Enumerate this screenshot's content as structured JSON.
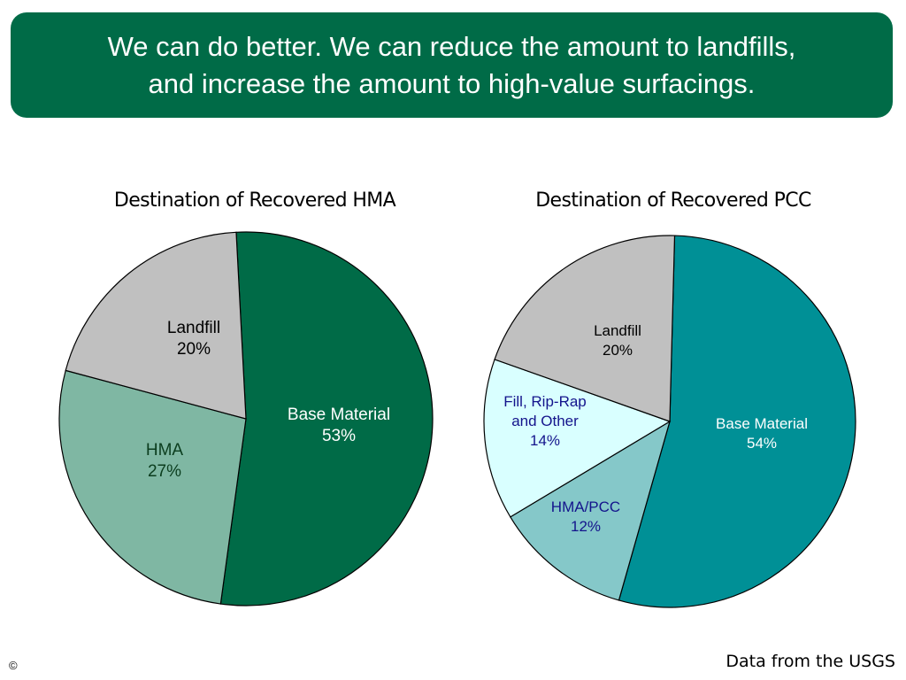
{
  "banner": {
    "text": "We can do better. We can reduce the amount to landfills,\nand increase the amount to high-value surfacings.",
    "color": "#006B47"
  },
  "chart_data": [
    {
      "type": "pie",
      "title": "Destination of Recovered HMA",
      "slices": [
        {
          "label": "Base Material",
          "value": 53,
          "value_label": "53%",
          "color": "#006B47",
          "label_color": "#ffffff"
        },
        {
          "label": "HMA",
          "value": 27,
          "value_label": "27%",
          "color": "#7FB7A3",
          "label_color": "#0B3D1E"
        },
        {
          "label": "Landfill",
          "value": 20,
          "value_label": "20%",
          "color": "#C0C0C0",
          "label_color": "#000000"
        }
      ]
    },
    {
      "type": "pie",
      "title": "Destination of Recovered PCC",
      "slices": [
        {
          "label": "Base Material",
          "value": 54,
          "value_label": "54%",
          "color": "#009096",
          "label_color": "#ffffff"
        },
        {
          "label": "HMA/PCC",
          "value": 12,
          "value_label": "12%",
          "color": "#85C8C9",
          "label_color": "#14148C"
        },
        {
          "label": "Fill, Rip-Rap and Other",
          "value": 14,
          "value_label": "14%",
          "color": "#D9FFFF",
          "label_color": "#14148C"
        },
        {
          "label": "Landfill",
          "value": 20,
          "value_label": "20%",
          "color": "#C0C0C0",
          "label_color": "#000000"
        }
      ]
    }
  ],
  "footer": {
    "source": "Data from the USGS",
    "copyright": "©"
  }
}
